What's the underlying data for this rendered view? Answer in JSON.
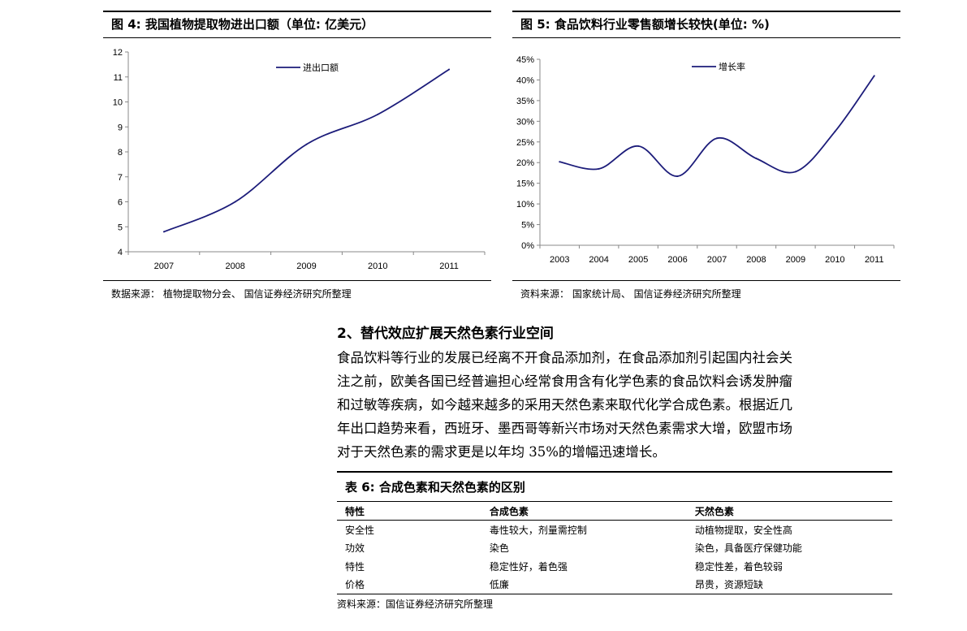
{
  "figure4": {
    "title": "图 4:  我国植物提取物进出口额（单位:  亿美元）",
    "source": "数据来源：  植物提取物分会、  国信证券经济研究所整理"
  },
  "figure5": {
    "title": "图 5:  食品饮料行业零售额增长较快(单位:   %)",
    "source": "资料来源：  国家统计局、  国信证券经济研究所整理"
  },
  "chart_data": [
    {
      "type": "line",
      "x": [
        "2007",
        "2008",
        "2009",
        "2010",
        "2011"
      ],
      "series": [
        {
          "name": "进出口额",
          "values": [
            4.8,
            6.0,
            8.3,
            9.5,
            11.3
          ],
          "color": "#1c1c7a"
        }
      ],
      "ylim": [
        4,
        12
      ],
      "yticks": [
        "4",
        "5",
        "6",
        "7",
        "8",
        "9",
        "10",
        "11",
        "12"
      ],
      "grid": false,
      "legend": "top-center"
    },
    {
      "type": "line",
      "x": [
        "2003",
        "2004",
        "2005",
        "2006",
        "2007",
        "2008",
        "2009",
        "2010",
        "2011"
      ],
      "series": [
        {
          "name": "增长率",
          "values": [
            20.2,
            18.5,
            24.0,
            16.7,
            25.9,
            21.0,
            17.8,
            27.5,
            41.0
          ],
          "color": "#1c1c7a"
        }
      ],
      "ylim": [
        0,
        45
      ],
      "yticks": [
        "0%",
        "5%",
        "10%",
        "15%",
        "20%",
        "25%",
        "30%",
        "35%",
        "40%",
        "45%"
      ],
      "grid": false,
      "legend": "top-center"
    }
  ],
  "section": {
    "heading": "2、替代效应扩展天然色素行业空间",
    "lines": [
      "食品饮料等行业的发展已经离不开食品添加剂，在食品添加剂引起国内社会关",
      "注之前，欧美各国已经普遍担心经常食用含有化学色素的食品饮料会诱发肿瘤",
      "和过敏等疾病，如今越来越多的采用天然色素来取代化学合成色素。根据近几",
      "年出口趋势来看，西班牙、墨西哥等新兴市场对天然色素需求大增，欧盟市场",
      "对于天然色素的需求更是以年均 35%的增幅迅速增长。"
    ]
  },
  "table6": {
    "title": "表 6: 合成色素和天然色素的区别",
    "headers": [
      "特性",
      "合成色素",
      "天然色素"
    ],
    "rows": [
      [
        "安全性",
        "毒性较大，剂量需控制",
        "动植物提取，安全性高"
      ],
      [
        "功效",
        "染色",
        "染色，具备医疗保健功能"
      ],
      [
        "特性",
        "稳定性好，着色强",
        "稳定性差，着色较弱"
      ],
      [
        "价格",
        "低廉",
        "昂贵，资源短缺"
      ]
    ],
    "source": "资料来源：国信证券经济研究所整理"
  }
}
